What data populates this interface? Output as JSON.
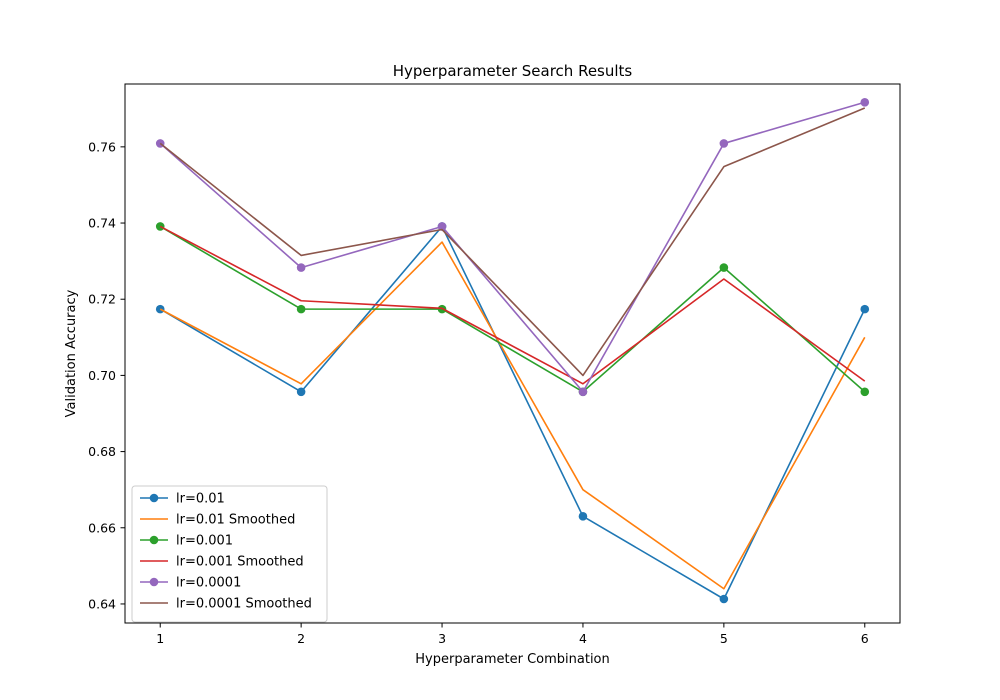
{
  "chart_data": {
    "type": "line",
    "title": "Hyperparameter Search Results",
    "xlabel": "Hyperparameter Combination",
    "ylabel": "Validation Accuracy",
    "x": [
      1,
      2,
      3,
      4,
      5,
      6
    ],
    "x_ticks": [
      "1",
      "2",
      "3",
      "4",
      "5",
      "6"
    ],
    "ylim": [
      0.635,
      0.7765
    ],
    "y_ticks": [
      "0.64",
      "0.66",
      "0.68",
      "0.70",
      "0.72",
      "0.74",
      "0.76"
    ],
    "y_tick_values": [
      0.64,
      0.66,
      0.68,
      0.7,
      0.72,
      0.74,
      0.76
    ],
    "grid": false,
    "legend_position": "lower-left",
    "series": [
      {
        "name": "lr=0.01",
        "color": "#1f77b4",
        "markers": true,
        "values": [
          0.7174,
          0.6957,
          0.7391,
          0.663,
          0.6413,
          0.7174
        ]
      },
      {
        "name": "lr=0.01 Smoothed",
        "color": "#ff7f0e",
        "markers": false,
        "values": [
          0.7174,
          0.6978,
          0.735,
          0.67,
          0.644,
          0.71
        ]
      },
      {
        "name": "lr=0.001",
        "color": "#2ca02c",
        "markers": true,
        "values": [
          0.7391,
          0.7174,
          0.7174,
          0.6957,
          0.7283,
          0.6957
        ]
      },
      {
        "name": "lr=0.001 Smoothed",
        "color": "#d62728",
        "markers": false,
        "values": [
          0.7391,
          0.7196,
          0.7176,
          0.6978,
          0.7253,
          0.6985
        ]
      },
      {
        "name": "lr=0.0001",
        "color": "#9467bd",
        "markers": true,
        "values": [
          0.7609,
          0.7283,
          0.7391,
          0.6957,
          0.7609,
          0.7717
        ]
      },
      {
        "name": "lr=0.0001 Smoothed",
        "color": "#8c564b",
        "markers": false,
        "values": [
          0.7609,
          0.7315,
          0.7383,
          0.7,
          0.7548,
          0.7702
        ]
      }
    ]
  }
}
